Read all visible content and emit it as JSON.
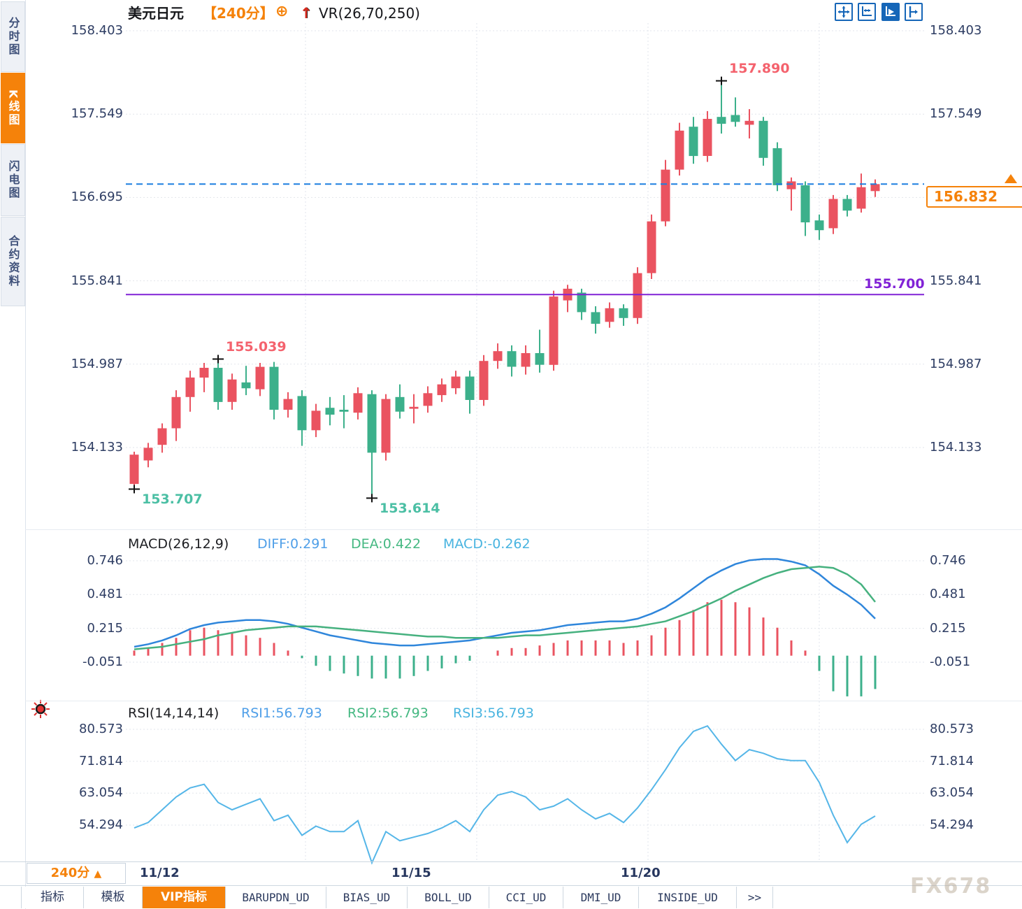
{
  "sidebar": {
    "tabs": [
      {
        "label": "分时图",
        "active": false
      },
      {
        "label": "K线图",
        "active": true
      },
      {
        "label": "闪电图",
        "active": false
      },
      {
        "label": "合约资料",
        "active": false
      }
    ]
  },
  "header": {
    "symbol": "美元日元",
    "period": "【240分】",
    "plus_icon": "⊕",
    "arrow_icon": "↑",
    "indicator": "VR(26,70,250)"
  },
  "toolbar_icons": [
    {
      "name": "crosshair-move",
      "active": false
    },
    {
      "name": "fit-axis",
      "active": false
    },
    {
      "name": "auto-scroll",
      "active": true
    },
    {
      "name": "pan-right",
      "active": false
    }
  ],
  "main_chart": {
    "y_tick_labels": [
      "158.403",
      "157.549",
      "156.695",
      "155.841",
      "154.987",
      "154.133"
    ],
    "hline_label": "155.700",
    "last_price_label": "156.832"
  },
  "macd_panel": {
    "title": "MACD(26,12,9)",
    "diff_label": "DIFF:0.291",
    "dea_label": "DEA:0.422",
    "macd_label": "MACD:-0.262",
    "y_tick_labels": [
      "0.746",
      "0.481",
      "0.215",
      "-0.051"
    ]
  },
  "rsi_panel": {
    "title": "RSI(14,14,14)",
    "rsi1_label": "RSI1:56.793",
    "rsi2_label": "RSI2:56.793",
    "rsi3_label": "RSI3:56.793",
    "y_tick_labels": [
      "80.573",
      "71.814",
      "63.054",
      "54.294"
    ]
  },
  "x_axis": {
    "labels": [
      "11/12",
      "11/15",
      "11/20"
    ],
    "period_selector": "240分",
    "period_arrow": "▲"
  },
  "bottom_tabs": [
    {
      "label": "指标",
      "active": false,
      "mono": false
    },
    {
      "label": "模板",
      "active": false,
      "mono": false
    },
    {
      "label": "VIP指标",
      "active": true,
      "mono": false
    },
    {
      "label": "BARUPDN_UD",
      "active": false,
      "mono": true
    },
    {
      "label": "BIAS_UD",
      "active": false,
      "mono": true
    },
    {
      "label": "BOLL_UD",
      "active": false,
      "mono": true
    },
    {
      "label": "CCI_UD",
      "active": false,
      "mono": true
    },
    {
      "label": "DMI_UD",
      "active": false,
      "mono": true
    },
    {
      "label": "INSIDE_UD",
      "active": false,
      "mono": true
    },
    {
      "label": ">>",
      "active": false,
      "mono": true
    }
  ],
  "watermark": "FX678",
  "colors": {
    "up": "#ea5360",
    "down": "#3cb08b",
    "accent": "#f5820a",
    "diff_blue": "#2f86db",
    "dea_green": "#46b17f",
    "rsi_blue": "#55b6e8",
    "dashed_blue": "#1d7fe0",
    "purple": "#8122d6",
    "note_red": "#f4626d",
    "note_green": "#4bbfa4",
    "grid": "#e2e6ec",
    "navy": "#2e3d63"
  },
  "chart_data": [
    {
      "type": "candlestick",
      "title": "美元日元 240分",
      "y_ticks": [
        158.403,
        157.549,
        156.695,
        155.841,
        154.987,
        154.133
      ],
      "ohlc": [
        [
          153.76,
          154.09,
          153.707,
          154.06
        ],
        [
          154.0,
          154.18,
          153.93,
          154.13
        ],
        [
          154.16,
          154.38,
          154.08,
          154.33
        ],
        [
          154.33,
          154.72,
          154.2,
          154.65
        ],
        [
          154.65,
          154.92,
          154.5,
          154.85
        ],
        [
          154.85,
          155.0,
          154.7,
          154.95
        ],
        [
          154.95,
          155.039,
          154.52,
          154.6
        ],
        [
          154.6,
          154.89,
          154.52,
          154.83
        ],
        [
          154.8,
          154.97,
          154.67,
          154.74
        ],
        [
          154.73,
          155.0,
          154.66,
          154.96
        ],
        [
          154.96,
          155.01,
          154.42,
          154.52
        ],
        [
          154.52,
          154.7,
          154.44,
          154.63
        ],
        [
          154.66,
          154.72,
          154.15,
          154.31
        ],
        [
          154.31,
          154.58,
          154.24,
          154.51
        ],
        [
          154.54,
          154.65,
          154.36,
          154.47
        ],
        [
          154.52,
          154.67,
          154.33,
          154.5
        ],
        [
          154.49,
          154.75,
          154.42,
          154.69
        ],
        [
          154.68,
          154.72,
          153.614,
          154.08
        ],
        [
          154.08,
          154.68,
          154.0,
          154.63
        ],
        [
          154.65,
          154.78,
          154.43,
          154.5
        ],
        [
          154.53,
          154.68,
          154.38,
          154.55
        ],
        [
          154.56,
          154.76,
          154.49,
          154.69
        ],
        [
          154.67,
          154.84,
          154.6,
          154.78
        ],
        [
          154.74,
          154.92,
          154.68,
          154.86
        ],
        [
          154.86,
          154.92,
          154.48,
          154.62
        ],
        [
          154.62,
          155.08,
          154.56,
          155.02
        ],
        [
          155.02,
          155.2,
          154.94,
          155.12
        ],
        [
          155.12,
          155.18,
          154.86,
          154.96
        ],
        [
          154.96,
          155.18,
          154.88,
          155.1
        ],
        [
          155.1,
          155.34,
          154.9,
          154.98
        ],
        [
          154.98,
          155.74,
          154.92,
          155.68
        ],
        [
          155.64,
          155.8,
          155.52,
          155.76
        ],
        [
          155.72,
          155.76,
          155.44,
          155.52
        ],
        [
          155.52,
          155.58,
          155.3,
          155.4
        ],
        [
          155.42,
          155.62,
          155.36,
          155.56
        ],
        [
          155.56,
          155.6,
          155.38,
          155.46
        ],
        [
          155.46,
          155.98,
          155.4,
          155.92
        ],
        [
          155.92,
          156.52,
          155.86,
          156.45
        ],
        [
          156.45,
          157.08,
          156.4,
          156.98
        ],
        [
          156.98,
          157.46,
          156.92,
          157.38
        ],
        [
          157.42,
          157.52,
          157.04,
          157.12
        ],
        [
          157.12,
          157.58,
          157.06,
          157.5
        ],
        [
          157.52,
          157.89,
          157.35,
          157.45
        ],
        [
          157.54,
          157.72,
          157.42,
          157.47
        ],
        [
          157.44,
          157.6,
          157.3,
          157.48
        ],
        [
          157.48,
          157.52,
          157.02,
          157.1
        ],
        [
          157.2,
          157.26,
          156.76,
          156.82
        ],
        [
          156.78,
          156.9,
          156.56,
          156.86
        ],
        [
          156.82,
          156.86,
          156.3,
          156.44
        ],
        [
          156.46,
          156.52,
          156.26,
          156.36
        ],
        [
          156.38,
          156.72,
          156.32,
          156.68
        ],
        [
          156.68,
          156.72,
          156.5,
          156.56
        ],
        [
          156.58,
          156.94,
          156.54,
          156.8
        ],
        [
          156.76,
          156.88,
          156.7,
          156.832
        ]
      ],
      "hlines": [
        {
          "value": 155.7,
          "style": "solid",
          "color_key": "purple",
          "label": "155.700"
        },
        {
          "value": 156.832,
          "style": "dashed",
          "color_key": "dashed_blue",
          "label": ""
        }
      ],
      "last_price": 156.832,
      "annotations": [
        {
          "index": 0,
          "price": 153.707,
          "text": "153.707",
          "color_key": "note_green",
          "placement": "below"
        },
        {
          "index": 6,
          "price": 155.039,
          "text": "155.039",
          "color_key": "note_red",
          "placement": "above"
        },
        {
          "index": 17,
          "price": 153.614,
          "text": "153.614",
          "color_key": "note_green",
          "placement": "below"
        },
        {
          "index": 42,
          "price": 157.89,
          "text": "157.890",
          "color_key": "note_red",
          "placement": "above"
        }
      ],
      "x_labels": [
        "11/12",
        "11/15",
        "11/20"
      ]
    },
    {
      "type": "bar",
      "subtype": "macd",
      "title": "MACD(26,12,9)",
      "y_ticks": [
        0.746,
        0.481,
        0.215,
        -0.051
      ],
      "diff": [
        0.07,
        0.09,
        0.12,
        0.16,
        0.21,
        0.24,
        0.26,
        0.27,
        0.28,
        0.28,
        0.27,
        0.25,
        0.22,
        0.19,
        0.16,
        0.14,
        0.12,
        0.1,
        0.09,
        0.08,
        0.08,
        0.09,
        0.1,
        0.11,
        0.12,
        0.14,
        0.16,
        0.18,
        0.19,
        0.2,
        0.22,
        0.24,
        0.25,
        0.26,
        0.27,
        0.27,
        0.29,
        0.33,
        0.38,
        0.45,
        0.53,
        0.61,
        0.67,
        0.72,
        0.75,
        0.76,
        0.76,
        0.74,
        0.71,
        0.64,
        0.55,
        0.48,
        0.4,
        0.291
      ],
      "dea": [
        0.05,
        0.06,
        0.07,
        0.09,
        0.11,
        0.13,
        0.16,
        0.18,
        0.2,
        0.21,
        0.22,
        0.23,
        0.23,
        0.23,
        0.22,
        0.21,
        0.2,
        0.19,
        0.18,
        0.17,
        0.16,
        0.15,
        0.15,
        0.14,
        0.14,
        0.14,
        0.14,
        0.15,
        0.16,
        0.16,
        0.17,
        0.18,
        0.19,
        0.2,
        0.21,
        0.22,
        0.23,
        0.25,
        0.27,
        0.31,
        0.35,
        0.4,
        0.45,
        0.51,
        0.56,
        0.61,
        0.65,
        0.68,
        0.69,
        0.7,
        0.69,
        0.64,
        0.56,
        0.422
      ],
      "histogram_rule": "2*(diff-dea)",
      "latest": {
        "diff": 0.291,
        "dea": 0.422,
        "macd": -0.262
      }
    },
    {
      "type": "line",
      "subtype": "rsi",
      "title": "RSI(14,14,14)",
      "y_ticks": [
        80.573,
        71.814,
        63.054,
        54.294
      ],
      "rsi": [
        53.5,
        55.0,
        58.5,
        62.0,
        64.5,
        65.5,
        60.5,
        58.5,
        60.0,
        61.5,
        55.5,
        57.0,
        51.5,
        54.0,
        52.5,
        52.5,
        55.5,
        43.5,
        52.5,
        50.0,
        51.0,
        52.0,
        53.5,
        55.5,
        52.5,
        58.5,
        62.5,
        63.5,
        62.0,
        58.5,
        59.5,
        61.5,
        58.5,
        56.0,
        57.5,
        55.0,
        59.0,
        64.0,
        69.5,
        75.5,
        80.0,
        81.5,
        76.5,
        72.0,
        75.0,
        74.0,
        72.5,
        72.0,
        72.0,
        66.0,
        57.0,
        49.5,
        54.5,
        56.793
      ],
      "latest": {
        "rsi1": 56.793,
        "rsi2": 56.793,
        "rsi3": 56.793
      }
    }
  ]
}
